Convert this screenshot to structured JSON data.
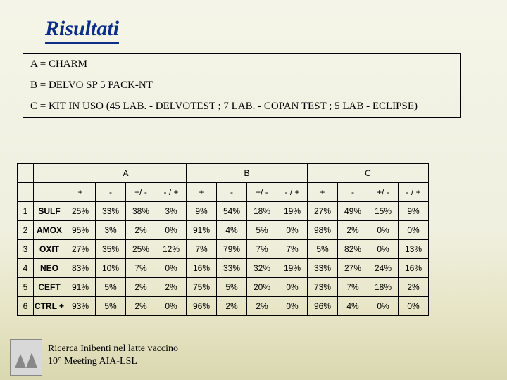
{
  "title": "Risultati",
  "legend": {
    "a": "A = CHARM",
    "b": "B = DELVO SP 5 PACK-NT",
    "c": "C = KIT IN USO (45 LAB. - DELVOTEST ; 7 LAB. - COPAN TEST ; 5 LAB - ECLIPSE)"
  },
  "table": {
    "groups": [
      "A",
      "B",
      "C"
    ],
    "sub_headers": [
      "+",
      "-",
      "+/ -",
      "- / +"
    ],
    "row_labels": [
      "SULF",
      "AMOX",
      "OXIT",
      "NEO",
      "CEFT",
      "CTRL +"
    ],
    "rows": [
      [
        "25%",
        "33%",
        "38%",
        "3%",
        "9%",
        "54%",
        "18%",
        "19%",
        "27%",
        "49%",
        "15%",
        "9%"
      ],
      [
        "95%",
        "3%",
        "2%",
        "0%",
        "91%",
        "4%",
        "5%",
        "0%",
        "98%",
        "2%",
        "0%",
        "0%"
      ],
      [
        "27%",
        "35%",
        "25%",
        "12%",
        "7%",
        "79%",
        "7%",
        "7%",
        "5%",
        "82%",
        "0%",
        "13%"
      ],
      [
        "83%",
        "10%",
        "7%",
        "0%",
        "16%",
        "33%",
        "32%",
        "19%",
        "33%",
        "27%",
        "24%",
        "16%"
      ],
      [
        "91%",
        "5%",
        "2%",
        "2%",
        "75%",
        "5%",
        "20%",
        "0%",
        "73%",
        "7%",
        "18%",
        "2%"
      ],
      [
        "93%",
        "5%",
        "2%",
        "0%",
        "96%",
        "2%",
        "2%",
        "0%",
        "96%",
        "4%",
        "0%",
        "0%"
      ]
    ],
    "border_color": "#000000",
    "font_family": "Arial",
    "font_size_pt": 9
  },
  "footer": {
    "line1": "Ricerca Inibenti nel latte vaccino",
    "line2": "10° Meeting AIA-LSL"
  },
  "colors": {
    "title": "#0b2e8a",
    "bg_top": "#f4f4e8",
    "bg_bottom": "#dad8b0",
    "text": "#000000"
  }
}
